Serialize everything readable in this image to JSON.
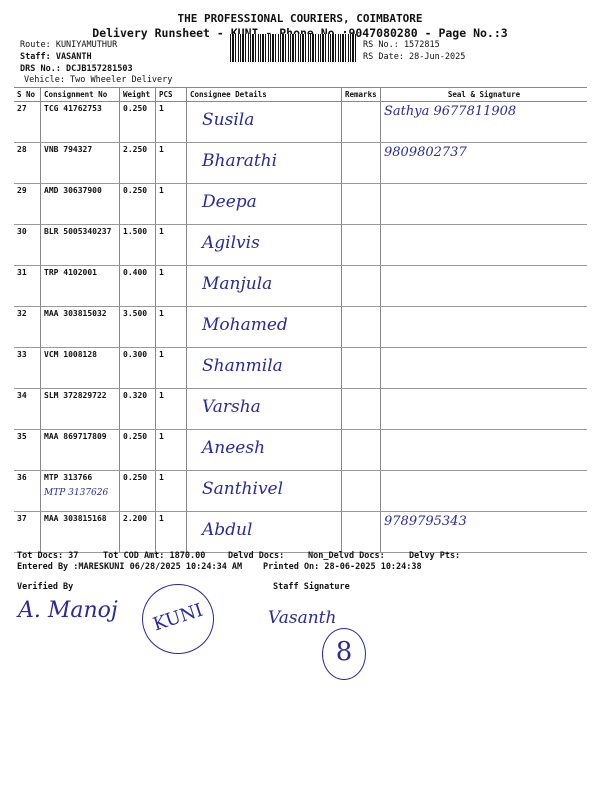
{
  "header": {
    "company": "THE PROFESSIONAL COURIERS, COIMBATORE",
    "subtitle": "Delivery Runsheet - KUNI - Phone No.:9047080280 - Page No.:3",
    "route": "Route: KUNIYAMUTHUR",
    "staff": "Staff: VASANTH",
    "drs_no": "DRS No.: DCJB157281503",
    "vehicle": "Vehicle: Two Wheeler Delivery",
    "rs_no": "RS No.: 1572815",
    "rs_date": "RS Date: 28-Jun-2025"
  },
  "table": {
    "columns": [
      "S No",
      "Consignment No",
      "Weight",
      "PCS",
      "Consignee Details",
      "Remarks",
      "Seal & Signature"
    ],
    "rows": [
      {
        "sno": "27",
        "consignment": "TCG 41762753",
        "weight": "0.250",
        "pcs": "1",
        "consignee_handwritten": "Susila",
        "seal_handwritten": "Sathya 9677811908"
      },
      {
        "sno": "28",
        "consignment": "VNB 794327",
        "weight": "2.250",
        "pcs": "1",
        "consignee_handwritten": "Bharathi",
        "seal_handwritten": "9809802737"
      },
      {
        "sno": "29",
        "consignment": "AMD 30637900",
        "weight": "0.250",
        "pcs": "1",
        "consignee_handwritten": "Deepa",
        "seal_handwritten": ""
      },
      {
        "sno": "30",
        "consignment": "BLR 5005340237",
        "weight": "1.500",
        "pcs": "1",
        "consignee_handwritten": "Agilvis",
        "seal_handwritten": ""
      },
      {
        "sno": "31",
        "consignment": "TRP 4102001",
        "weight": "0.400",
        "pcs": "1",
        "consignee_handwritten": "Manjula",
        "seal_handwritten": ""
      },
      {
        "sno": "32",
        "consignment": "MAA 303815032",
        "weight": "3.500",
        "pcs": "1",
        "consignee_handwritten": "Mohamed",
        "seal_handwritten": ""
      },
      {
        "sno": "33",
        "consignment": "VCM 1008128",
        "weight": "0.300",
        "pcs": "1",
        "consignee_handwritten": "Shanmila",
        "seal_handwritten": ""
      },
      {
        "sno": "34",
        "consignment": "SLM 372829722",
        "weight": "0.320",
        "pcs": "1",
        "consignee_handwritten": "Varsha",
        "seal_handwritten": ""
      },
      {
        "sno": "35",
        "consignment": "MAA 869717809",
        "weight": "0.250",
        "pcs": "1",
        "consignee_handwritten": "Aneesh",
        "seal_handwritten": ""
      },
      {
        "sno": "36",
        "consignment": "MTP 313766",
        "weight": "0.250",
        "pcs": "1",
        "consignee_handwritten": "Santhivel",
        "seal_handwritten": "",
        "note_handwritten": "MTP 3137626"
      },
      {
        "sno": "37",
        "consignment": "MAA 303815168",
        "weight": "2.200",
        "pcs": "1",
        "consignee_handwritten": "Abdul",
        "seal_handwritten": "9789795343"
      }
    ]
  },
  "footer": {
    "tot_docs": "Tot Docs:  37",
    "tot_cod": "Tot COD Amt: 1870.00",
    "delvd_docs": "Delvd Docs:",
    "non_delvd_docs": "Non_Delvd Docs:",
    "delvy_pts": "Delvy Pts:",
    "entered_by": "Entered By :MARESKUNI 06/28/2025 10:24:34 AM",
    "printed_on": "Printed On: 28-06-2025 10:24:38",
    "verified_by": "Verified By",
    "staff_signature": "Staff Signature",
    "verifier_signature": "A. Manoj",
    "stamp_text": "KUNI",
    "staff_signature_handwritten": "Vasanth",
    "circled_number": "8"
  },
  "colors": {
    "ink": "#2a2a9a",
    "print": "#111111"
  }
}
